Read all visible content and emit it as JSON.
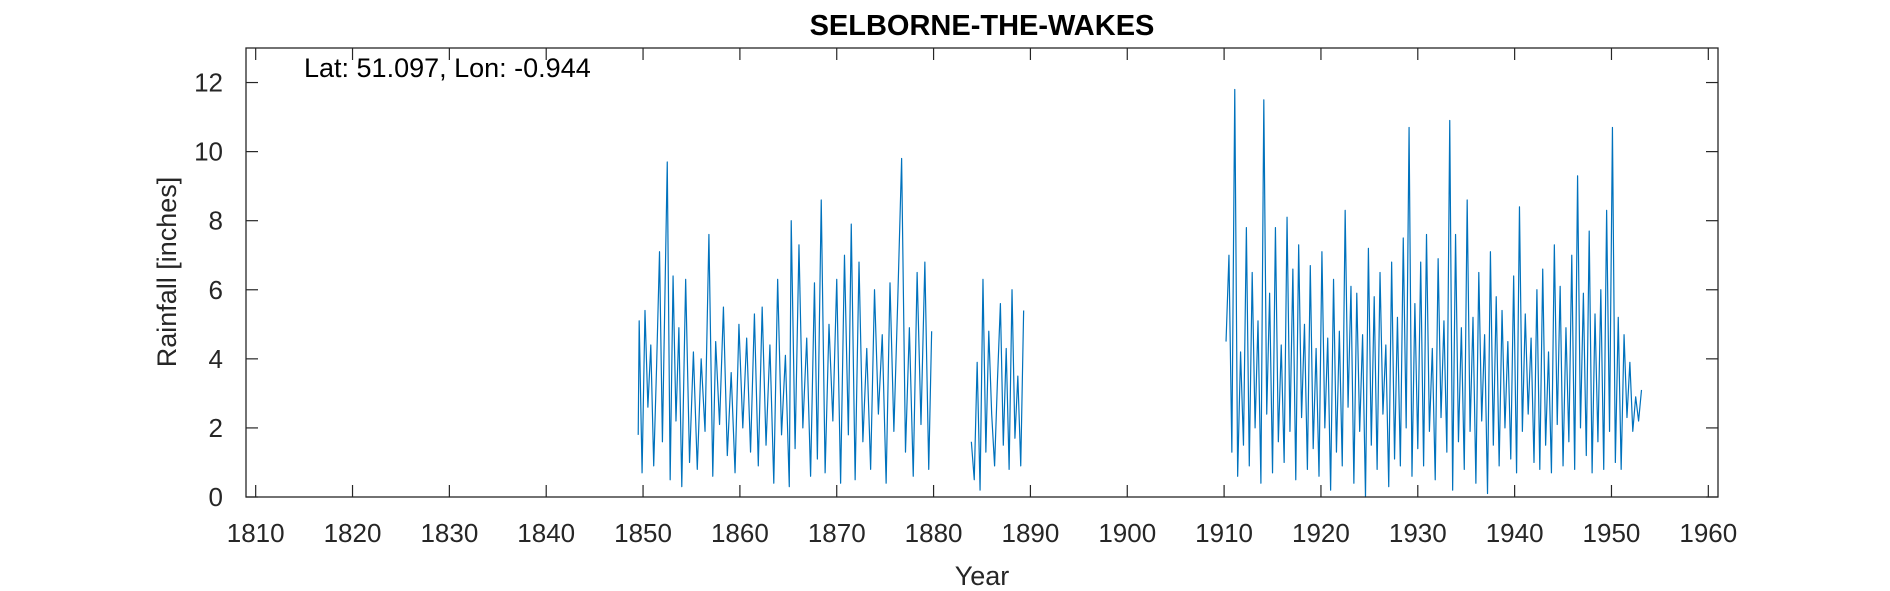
{
  "chart_data": {
    "type": "line",
    "title": "SELBORNE-THE-WAKES",
    "annotation": "Lat: 51.097, Lon: -0.944",
    "xlabel": "Year",
    "ylabel": "Rainfall [inches]",
    "xlim": [
      1809,
      1961
    ],
    "ylim": [
      0,
      13
    ],
    "xticks": [
      1810,
      1820,
      1830,
      1840,
      1850,
      1860,
      1870,
      1880,
      1890,
      1900,
      1910,
      1920,
      1930,
      1940,
      1950,
      1960
    ],
    "yticks": [
      0,
      2,
      4,
      6,
      8,
      10,
      12
    ],
    "grid": false,
    "series_color": "#0072BD",
    "series": [
      {
        "segments": [
          {
            "x": [
              1849.5,
              1849.6,
              1849.9,
              1850.2,
              1850.5,
              1850.8,
              1851.1,
              1851.4,
              1851.7,
              1852.0,
              1852.3,
              1852.5,
              1852.8,
              1853.1,
              1853.4,
              1853.7,
              1854.0,
              1854.4,
              1854.8,
              1855.2,
              1855.6,
              1856.0,
              1856.4,
              1856.8,
              1857.2,
              1857.5,
              1857.9,
              1858.3,
              1858.7,
              1859.1,
              1859.5,
              1859.9,
              1860.3,
              1860.7,
              1861.1,
              1861.5,
              1861.9,
              1862.3,
              1862.7,
              1863.1,
              1863.5,
              1863.9,
              1864.3,
              1864.7,
              1865.1,
              1865.3,
              1865.7,
              1866.1,
              1866.5,
              1866.9,
              1867.3,
              1867.7,
              1868.0,
              1868.4,
              1868.8,
              1869.2,
              1869.6,
              1870.0,
              1870.4,
              1870.8,
              1871.2,
              1871.5,
              1871.9,
              1872.3,
              1872.7,
              1873.1,
              1873.5,
              1873.9,
              1874.3,
              1874.7,
              1875.1,
              1875.5,
              1875.9,
              1876.3,
              1876.7,
              1877.1,
              1877.5,
              1877.9,
              1878.3,
              1878.7,
              1879.1,
              1879.5,
              1879.8
            ],
            "y": [
              1.8,
              5.1,
              0.7,
              5.4,
              2.6,
              4.4,
              0.9,
              3.8,
              7.1,
              1.6,
              6.5,
              9.7,
              0.5,
              6.4,
              2.2,
              4.9,
              0.3,
              6.3,
              1.0,
              4.2,
              0.8,
              4.0,
              1.9,
              7.6,
              0.6,
              4.5,
              2.1,
              5.5,
              1.2,
              3.6,
              0.7,
              5.0,
              2.0,
              4.6,
              1.3,
              5.3,
              0.9,
              5.5,
              1.5,
              4.4,
              0.4,
              6.3,
              1.8,
              4.1,
              0.3,
              8.0,
              1.4,
              7.3,
              2.0,
              4.6,
              0.6,
              6.2,
              1.1,
              8.6,
              0.7,
              5.0,
              2.2,
              6.3,
              0.4,
              7.0,
              1.8,
              7.9,
              0.5,
              6.8,
              1.6,
              4.3,
              0.8,
              6.0,
              2.4,
              4.7,
              0.4,
              6.2,
              1.9,
              5.7,
              9.8,
              1.3,
              4.9,
              0.6,
              6.5,
              2.1,
              6.8,
              0.8,
              4.8
            ]
          },
          {
            "x": [
              1883.9,
              1884.2,
              1884.5,
              1884.8,
              1885.1,
              1885.4,
              1885.7,
              1886.0,
              1886.3,
              1886.6,
              1886.9,
              1887.2,
              1887.5,
              1887.8,
              1888.1,
              1888.4,
              1888.7,
              1889.0,
              1889.3
            ],
            "y": [
              1.6,
              0.5,
              3.9,
              0.2,
              6.3,
              1.3,
              4.8,
              2.4,
              0.9,
              3.4,
              5.6,
              1.5,
              4.3,
              0.8,
              6.0,
              1.7,
              3.5,
              0.9,
              5.4
            ]
          },
          {
            "x": [
              1910.2,
              1910.5,
              1910.8,
              1911.1,
              1911.4,
              1911.7,
              1912.0,
              1912.3,
              1912.6,
              1912.9,
              1913.2,
              1913.5,
              1913.8,
              1914.1,
              1914.4,
              1914.7,
              1915.0,
              1915.3,
              1915.6,
              1915.9,
              1916.2,
              1916.5,
              1916.8,
              1917.1,
              1917.4,
              1917.7,
              1918.0,
              1918.3,
              1918.6,
              1918.9,
              1919.2,
              1919.5,
              1919.8,
              1920.1,
              1920.4,
              1920.7,
              1921.0,
              1921.3,
              1921.6,
              1921.9,
              1922.2,
              1922.5,
              1922.8,
              1923.1,
              1923.4,
              1923.7,
              1924.0,
              1924.3,
              1924.6,
              1924.9,
              1925.2,
              1925.5,
              1925.8,
              1926.1,
              1926.4,
              1926.7,
              1927.0,
              1927.3,
              1927.6,
              1927.9,
              1928.2,
              1928.5,
              1928.8,
              1929.1,
              1929.4,
              1929.7,
              1930.0,
              1930.3,
              1930.6,
              1930.9,
              1931.2,
              1931.5,
              1931.8,
              1932.1,
              1932.4,
              1932.7,
              1933.0,
              1933.3,
              1933.6,
              1933.9,
              1934.2,
              1934.5,
              1934.8,
              1935.1,
              1935.4,
              1935.7,
              1936.0,
              1936.3,
              1936.6,
              1936.9,
              1937.2,
              1937.5,
              1937.8,
              1938.1,
              1938.4,
              1938.7,
              1939.0,
              1939.3,
              1939.6,
              1939.9,
              1940.2,
              1940.5,
              1940.8,
              1941.1,
              1941.4,
              1941.7,
              1942.0,
              1942.3,
              1942.6,
              1942.9,
              1943.2,
              1943.5,
              1943.8,
              1944.1,
              1944.4,
              1944.7,
              1945.0,
              1945.3,
              1945.6,
              1945.9,
              1946.2,
              1946.5,
              1946.8,
              1947.1,
              1947.4,
              1947.7,
              1948.0,
              1948.3,
              1948.6,
              1948.9,
              1949.2,
              1949.5,
              1949.8,
              1950.1,
              1950.4,
              1950.7,
              1951.0,
              1951.3,
              1951.6,
              1951.9,
              1952.2,
              1952.5,
              1952.8,
              1953.1
            ],
            "y": [
              4.5,
              7.0,
              1.3,
              11.8,
              0.6,
              4.2,
              1.5,
              7.8,
              0.9,
              6.5,
              2.0,
              5.1,
              0.4,
              11.5,
              2.4,
              5.9,
              0.7,
              7.8,
              1.6,
              4.4,
              1.0,
              8.1,
              1.9,
              6.6,
              0.5,
              7.3,
              2.3,
              5.0,
              0.8,
              6.7,
              1.4,
              4.3,
              0.6,
              7.1,
              2.0,
              4.6,
              0.2,
              6.3,
              1.3,
              4.8,
              0.9,
              8.3,
              2.6,
              6.1,
              0.4,
              5.9,
              1.9,
              4.7,
              0.0,
              7.2,
              1.5,
              5.8,
              0.8,
              6.5,
              2.4,
              4.4,
              0.3,
              6.8,
              1.1,
              5.2,
              0.9,
              7.5,
              2.0,
              10.7,
              0.6,
              5.6,
              1.4,
              6.8,
              0.9,
              7.6,
              1.9,
              4.3,
              0.5,
              6.9,
              2.3,
              5.1,
              1.3,
              10.9,
              0.2,
              7.6,
              1.6,
              4.9,
              0.8,
              8.6,
              1.9,
              5.2,
              0.4,
              6.5,
              2.2,
              4.7,
              0.1,
              7.1,
              1.5,
              5.8,
              0.9,
              5.4,
              2.0,
              4.5,
              1.1,
              6.4,
              0.7,
              8.4,
              1.9,
              5.3,
              2.4,
              4.6,
              1.0,
              6.0,
              0.8,
              6.6,
              1.5,
              4.2,
              0.7,
              7.3,
              2.1,
              6.1,
              0.9,
              4.9,
              1.6,
              7.0,
              0.8,
              9.3,
              2.0,
              5.9,
              1.2,
              7.7,
              0.7,
              5.3,
              1.6,
              6.0,
              0.8,
              8.3,
              1.9,
              10.7,
              1.0,
              5.2,
              0.8,
              4.7,
              2.3,
              3.9,
              1.9,
              2.9,
              2.2,
              3.1
            ]
          }
        ]
      }
    ]
  }
}
